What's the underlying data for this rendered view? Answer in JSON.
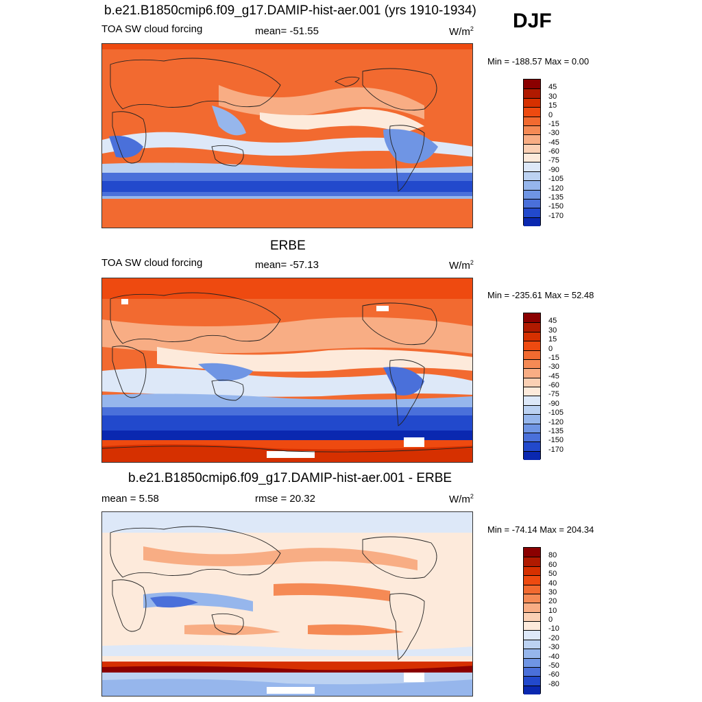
{
  "season": "DJF",
  "panels": [
    {
      "title": "b.e21.B1850cmip6.f09_g17.DAMIP-hist-aer.001 (yrs 1910-1934)",
      "left_label": "TOA SW cloud forcing",
      "mid_label": "mean= -51.55",
      "units": "W/m",
      "units_sup": "2",
      "minmax": "Min = -188.57 Max =   0.00",
      "colorbar_labels": [
        "45",
        "30",
        "15",
        "0",
        "-15",
        "-30",
        "-45",
        "-60",
        "-75",
        "-90",
        "-105",
        "-120",
        "-135",
        "-150",
        "-170"
      ]
    },
    {
      "title": "ERBE",
      "left_label": "TOA SW cloud forcing",
      "mid_label": "mean= -57.13",
      "units": "W/m",
      "units_sup": "2",
      "minmax": "Min = -235.61 Max =  52.48",
      "colorbar_labels": [
        "45",
        "30",
        "15",
        "0",
        "-15",
        "-30",
        "-45",
        "-60",
        "-75",
        "-90",
        "-105",
        "-120",
        "-135",
        "-150",
        "-170"
      ]
    },
    {
      "title": "b.e21.B1850cmip6.f09_g17.DAMIP-hist-aer.001 - ERBE",
      "left_label": "mean =   5.58",
      "mid_label": "rmse =  20.32",
      "units": "W/m",
      "units_sup": "2",
      "minmax": "Min = -74.14 Max = 204.34",
      "colorbar_labels": [
        "80",
        "60",
        "50",
        "40",
        "30",
        "20",
        "10",
        "0",
        "-10",
        "-20",
        "-30",
        "-40",
        "-50",
        "-60",
        "-80"
      ]
    }
  ],
  "colors": {
    "scale": [
      "#8b0000",
      "#b01a00",
      "#d63000",
      "#ee4a10",
      "#f26a30",
      "#f58a55",
      "#f8ad84",
      "#fbd0b4",
      "#fdeadb",
      "#dde8f8",
      "#bcd2f2",
      "#96b6ec",
      "#6f95e4",
      "#4a70da",
      "#2249cc",
      "#0a28b0",
      "#000f87"
    ]
  }
}
